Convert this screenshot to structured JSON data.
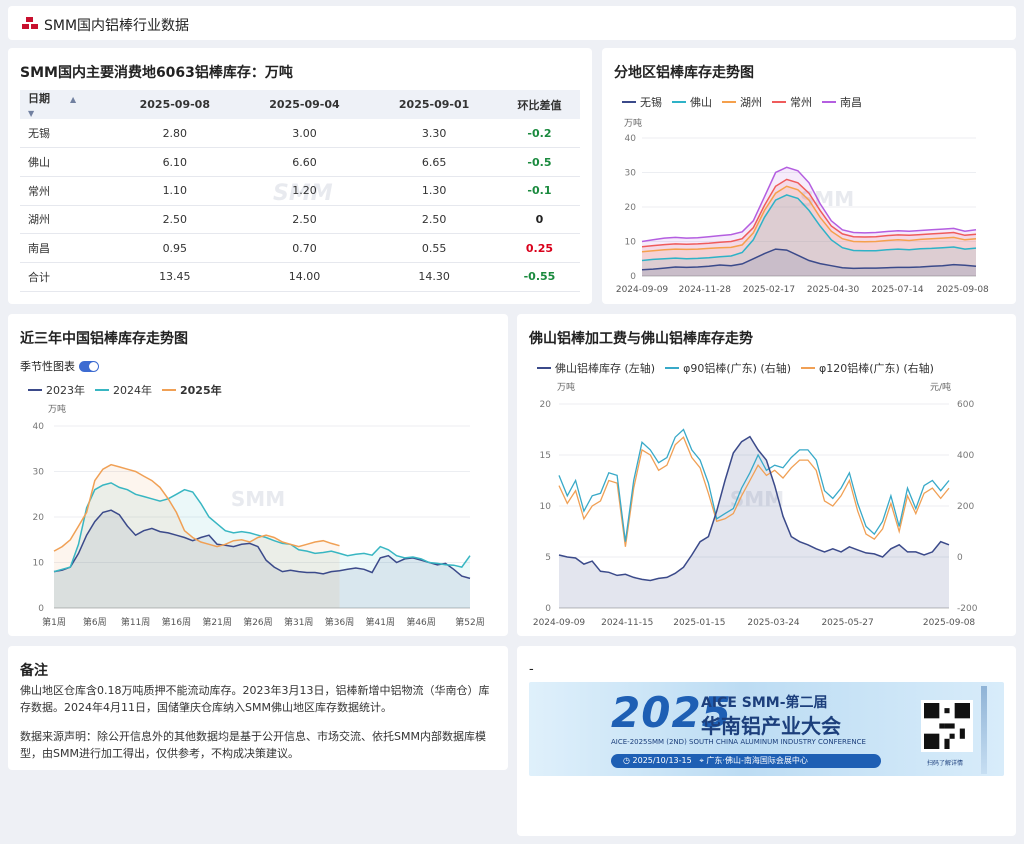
{
  "header": {
    "title": "SMM国内铝棒行业数据"
  },
  "watermark": "SMM",
  "table": {
    "title": "SMM国内主要消费地6063铝棒库存：万吨",
    "columns": [
      "日期",
      "2025-09-08",
      "2025-09-04",
      "2025-09-01",
      "环比差值"
    ],
    "rows": [
      {
        "city": "无锡",
        "v1": "2.80",
        "v2": "3.00",
        "v3": "3.30",
        "diff": "-0.2",
        "color": "#1a8a3e"
      },
      {
        "city": "佛山",
        "v1": "6.10",
        "v2": "6.60",
        "v3": "6.65",
        "diff": "-0.5",
        "color": "#1a8a3e"
      },
      {
        "city": "常州",
        "v1": "1.10",
        "v2": "1.20",
        "v3": "1.30",
        "diff": "-0.1",
        "color": "#1a8a3e"
      },
      {
        "city": "湖州",
        "v1": "2.50",
        "v2": "2.50",
        "v3": "2.50",
        "diff": "0",
        "color": "#222222"
      },
      {
        "city": "南昌",
        "v1": "0.95",
        "v2": "0.70",
        "v3": "0.55",
        "diff": "0.25",
        "color": "#d9001b"
      },
      {
        "city": "合计",
        "v1": "13.45",
        "v2": "14.00",
        "v3": "14.30",
        "diff": "-0.55",
        "color": "#1a8a3e"
      }
    ]
  },
  "chart_data": [
    {
      "type": "area",
      "title": "分地区铝棒库存走势图",
      "ylabel": "万吨",
      "ylim": [
        0,
        40
      ],
      "yticks": [
        "0",
        "10",
        "20",
        "30",
        "40"
      ],
      "xticks": [
        "2024-09-09",
        "2024-11-28",
        "2025-02-17",
        "2025-04-30",
        "2025-07-14",
        "2025-09-08"
      ],
      "series": [
        {
          "name": "无锡",
          "color": "#3b4a8a",
          "values": [
            1.8,
            2.0,
            2.3,
            2.6,
            2.5,
            2.6,
            2.8,
            3.2,
            3.0,
            3.5,
            5.0,
            6.5,
            7.8,
            7.5,
            6.0,
            4.5,
            3.6,
            3.0,
            2.4,
            2.2,
            2.3,
            2.3,
            2.4,
            2.5,
            2.5,
            2.6,
            2.8,
            3.0,
            3.3,
            3.1,
            2.8
          ]
        },
        {
          "name": "佛山",
          "color": "#2eb2c7",
          "values": [
            4.5,
            4.8,
            5.0,
            5.2,
            5.0,
            5.1,
            5.3,
            5.6,
            5.8,
            6.8,
            10.5,
            17,
            22,
            23.5,
            22.5,
            19,
            14.5,
            10.5,
            8.2,
            7.4,
            7.3,
            7.3,
            7.6,
            7.8,
            7.6,
            7.9,
            8.0,
            8.2,
            8.4,
            7.8,
            8.1
          ]
        },
        {
          "name": "湖州",
          "color": "#f5a04c",
          "values": [
            7,
            7.3,
            7.6,
            7.8,
            7.7,
            7.8,
            8.0,
            8.2,
            8.3,
            9.0,
            12.5,
            19,
            24,
            26,
            25,
            22,
            17,
            13,
            10.8,
            10,
            9.9,
            10,
            10.3,
            10.5,
            10.3,
            10.6,
            10.8,
            11,
            11.2,
            10.5,
            10.8
          ]
        },
        {
          "name": "常州",
          "color": "#ef5b5b",
          "values": [
            8.5,
            8.8,
            9.1,
            9.3,
            9.2,
            9.3,
            9.5,
            9.8,
            10.0,
            10.8,
            14,
            20.5,
            26,
            28,
            27,
            24,
            19,
            14.5,
            12.2,
            11.4,
            11.3,
            11.4,
            11.7,
            11.9,
            11.8,
            12,
            12.2,
            12.4,
            12.6,
            11.8,
            12.1
          ]
        },
        {
          "name": "南昌",
          "color": "#b45ee0",
          "values": [
            10,
            10.5,
            11,
            11.2,
            11,
            11.1,
            11.4,
            11.7,
            12,
            12.8,
            16,
            23,
            30,
            31.5,
            30.5,
            27,
            21,
            16,
            13.4,
            12.6,
            12.5,
            12.6,
            12.9,
            13.1,
            13,
            13.2,
            13.4,
            13.6,
            13.8,
            13,
            13.4
          ]
        }
      ]
    },
    {
      "type": "line",
      "title": "近三年中国铝棒库存走势图",
      "ylabel": "万吨",
      "ylim": [
        0,
        40
      ],
      "toggle_label": "季节性图表",
      "toggle_on": true,
      "yticks": [
        "0",
        "10",
        "20",
        "30",
        "40"
      ],
      "xticks": [
        "第1周",
        "第6周",
        "第11周",
        "第16周",
        "第21周",
        "第26周",
        "第31周",
        "第36周",
        "第41周",
        "第46周",
        "第52周"
      ],
      "series": [
        {
          "name": "2023年",
          "color": "#3b4a8a",
          "values": [
            8,
            8.3,
            9,
            12,
            16,
            19,
            21,
            21.5,
            20.5,
            18,
            16,
            17,
            17.5,
            16.8,
            16.5,
            16,
            15.5,
            14.8,
            15.5,
            16,
            14,
            13.8,
            13.5,
            14,
            14.2,
            13.5,
            10.5,
            9,
            8,
            8.3,
            8,
            7.8,
            7.8,
            7.5,
            8,
            8.2,
            8.5,
            8.8,
            8.5,
            7.8,
            11,
            11.5,
            10,
            10.8,
            11,
            10.5,
            10,
            9.5,
            9.8,
            8.5,
            7,
            6.5
          ]
        },
        {
          "name": "2024年",
          "color": "#38b6c2",
          "values": [
            8,
            8.5,
            9,
            14,
            22,
            26,
            27,
            27.5,
            26.5,
            26,
            25,
            24.5,
            24,
            23.5,
            24,
            25,
            26,
            25.5,
            23,
            20,
            18.5,
            17,
            16.5,
            16.8,
            16.5,
            16,
            15.5,
            14.8,
            14.2,
            14,
            12.8,
            12.5,
            12,
            12.2,
            12.5,
            12,
            11.5,
            11.8,
            12,
            11.6,
            13.5,
            12.8,
            11.5,
            11,
            11.2,
            10.8,
            10,
            9.8,
            9.5,
            9.4,
            9,
            11.5
          ]
        },
        {
          "name": "2025年",
          "color": "#f0a055",
          "values": [
            12.5,
            13.5,
            15,
            18,
            21,
            28,
            30.5,
            31.5,
            31,
            30.5,
            30,
            29,
            28,
            26.5,
            24,
            21,
            17,
            15.5,
            14.5,
            14,
            13.5,
            14,
            14.8,
            15,
            14.5,
            15.5,
            16,
            15.5,
            14.5,
            14,
            13.5,
            14,
            14.5,
            14.8,
            14.2,
            13.7
          ]
        }
      ]
    },
    {
      "type": "line",
      "title": "佛山铝棒加工费与佛山铝棒库存走势",
      "ylabel": "万吨",
      "y2label": "元/吨",
      "ylim": [
        0,
        20
      ],
      "y2lim": [
        -200,
        600
      ],
      "yticks": [
        "0",
        "5",
        "10",
        "15",
        "20"
      ],
      "y2ticks": [
        "-200",
        "0",
        "200",
        "400",
        "600"
      ],
      "xticks": [
        "2024-09-09",
        "2024-11-15",
        "2025-01-15",
        "2025-03-24",
        "2025-05-27",
        "2025-09-08"
      ],
      "series": [
        {
          "name": "佛山铝棒库存 (左轴)",
          "color": "#3b4a8a",
          "axis": "left",
          "values": [
            5.2,
            5.0,
            4.9,
            4.3,
            4.6,
            3.6,
            3.5,
            3.2,
            3.3,
            3.0,
            2.8,
            2.7,
            2.9,
            3.0,
            3.4,
            4.0,
            5.2,
            6.5,
            7.0,
            9.5,
            12.5,
            15.2,
            16.3,
            16.8,
            15.5,
            14.5,
            12,
            9,
            7,
            6.5,
            6.2,
            5.8,
            5.5,
            5.8,
            5.5,
            6.0,
            5.7,
            5.4,
            5.3,
            5.0,
            5.8,
            6.2,
            5.5,
            5.5,
            5.2,
            5.5,
            6.5,
            6.2
          ]
        },
        {
          "name": "φ90铝棒(广东) (右轴)",
          "color": "#38a9c8",
          "axis": "right",
          "values": [
            320,
            240,
            300,
            180,
            240,
            250,
            330,
            320,
            60,
            300,
            450,
            420,
            370,
            390,
            470,
            500,
            420,
            380,
            290,
            150,
            170,
            190,
            270,
            330,
            400,
            340,
            360,
            350,
            390,
            420,
            420,
            380,
            260,
            230,
            270,
            330,
            210,
            120,
            90,
            140,
            240,
            120,
            270,
            190,
            280,
            300,
            260,
            300
          ]
        },
        {
          "name": "φ120铝棒(广东) (右轴)",
          "color": "#f0a055",
          "axis": "right",
          "values": [
            280,
            210,
            260,
            150,
            200,
            220,
            300,
            290,
            40,
            270,
            420,
            400,
            340,
            360,
            440,
            470,
            390,
            350,
            250,
            140,
            150,
            170,
            240,
            300,
            360,
            320,
            340,
            310,
            350,
            380,
            380,
            340,
            220,
            200,
            240,
            300,
            180,
            90,
            70,
            110,
            210,
            100,
            240,
            170,
            250,
            270,
            230,
            270
          ]
        }
      ]
    }
  ],
  "notes": {
    "title": "备注",
    "p1": "佛山地区仓库含0.18万吨质押不能流动库存。2023年3月13日，铝棒新增中铝物流（华南仓）库存数据。2024年4月11日，国储肇庆仓库纳入SMM佛山地区库存数据统计。",
    "p2": "数据来源声明：除公开信息外的其他数据均是基于公开信息、市场交流、依托SMM内部数据库模型，由SMM进行加工得出，仅供参考，不构成决策建议。"
  },
  "ad": {
    "dash": "-",
    "year": "2025",
    "line1": "AICE SMM-第二届",
    "line2": "华南铝产业大会",
    "line3": "AICE-2025SMM (2ND) SOUTH CHINA ALUMINUM INDUSTRY CONFERENCE",
    "dates": "2025/10/13-15",
    "place": "广东·佛山-南海国际会展中心",
    "qr": "扫码了解详情"
  }
}
